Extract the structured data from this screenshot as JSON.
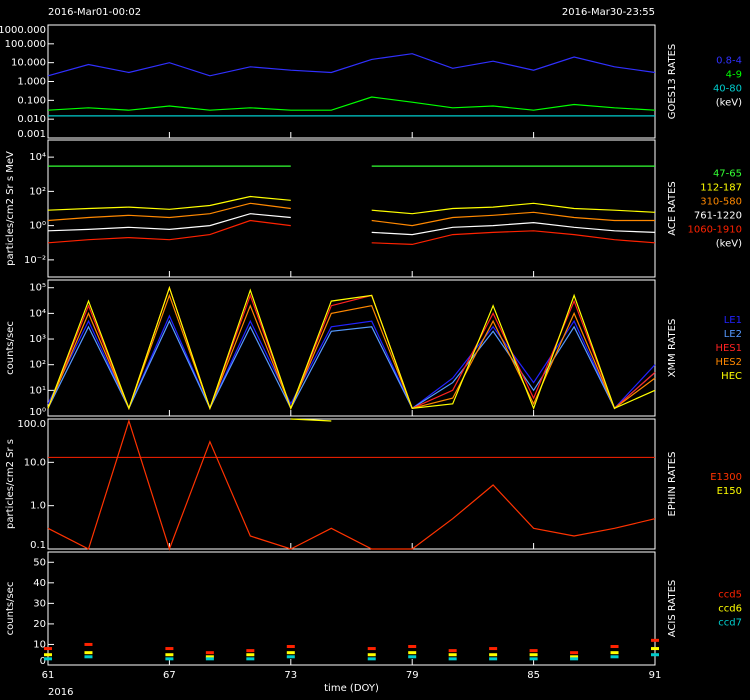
{
  "chart_data": [
    {
      "type": "line",
      "title_left": "2016-Mar01-00:02",
      "title_right": "2016-Mar30-23:55",
      "side_title": "GOES13 RATES",
      "log": true,
      "x": [
        61,
        63,
        65,
        67,
        69,
        71,
        73,
        75,
        77,
        79,
        81,
        83,
        85,
        87,
        89,
        91
      ],
      "xlim": [
        61,
        91
      ],
      "xticks": [
        61,
        67,
        73,
        79,
        85,
        91
      ],
      "ylim": [
        0.001,
        1000
      ],
      "yticks": [
        {
          "value": 1000,
          "label": "1000.000"
        },
        {
          "value": 100,
          "label": "100.000"
        },
        {
          "value": 10,
          "label": "10.000"
        },
        {
          "value": 1,
          "label": "1.000"
        },
        {
          "value": 0.1,
          "label": "0.100"
        },
        {
          "value": 0.01,
          "label": "0.010"
        },
        {
          "value": 0.001,
          "label": "0.001"
        }
      ],
      "legend_unit": "(keV)",
      "series": [
        {
          "name": "0.8-4",
          "color": "#3030ff",
          "values": [
            2,
            8,
            3,
            10,
            2,
            6,
            4,
            3,
            15,
            30,
            5,
            12,
            4,
            20,
            6,
            3
          ]
        },
        {
          "name": "4-9",
          "color": "#00ff00",
          "values": [
            0.03,
            0.04,
            0.03,
            0.05,
            0.03,
            0.04,
            0.03,
            0.03,
            0.15,
            0.08,
            0.04,
            0.05,
            0.03,
            0.06,
            0.04,
            0.03
          ]
        },
        {
          "name": "40-80",
          "color": "#00cccc",
          "values": [
            0.015,
            0.015,
            0.015,
            0.015,
            0.015,
            0.015,
            0.015,
            0.015,
            0.015,
            0.015,
            0.015,
            0.015,
            0.015,
            0.015,
            0.015,
            0.015
          ]
        }
      ]
    },
    {
      "type": "line",
      "side_title": "ACE RATES",
      "ylabel": "particles/cm2 Sr s MeV",
      "log": true,
      "x": [
        61,
        63,
        65,
        67,
        69,
        71,
        73,
        75,
        77,
        79,
        81,
        83,
        85,
        87,
        89,
        91
      ],
      "xlim": [
        61,
        91
      ],
      "xticks": [
        61,
        67,
        73,
        79,
        85,
        91
      ],
      "ylim": [
        0.001,
        100000
      ],
      "yticks": [
        {
          "value": 10000,
          "label": "10⁴"
        },
        {
          "value": 100,
          "label": "10²"
        },
        {
          "value": 1,
          "label": "10⁰"
        },
        {
          "value": 0.01,
          "label": "10⁻²"
        }
      ],
      "legend_unit": "(keV)",
      "series": [
        {
          "name": "47-65",
          "color": "#33ff33",
          "values": [
            3000,
            3000,
            3000,
            3000,
            3000,
            3000,
            3000,
            null,
            3000,
            3000,
            3000,
            3000,
            3000,
            3000,
            3000,
            3000
          ]
        },
        {
          "name": "112-187",
          "color": "#ffff00",
          "values": [
            8,
            10,
            12,
            9,
            15,
            50,
            30,
            null,
            8,
            5,
            10,
            12,
            20,
            10,
            8,
            6
          ]
        },
        {
          "name": "310-580",
          "color": "#ff8800",
          "values": [
            2,
            3,
            4,
            3,
            5,
            20,
            10,
            null,
            2,
            1,
            3,
            4,
            6,
            3,
            2,
            2
          ]
        },
        {
          "name": "761-1220",
          "color": "#ffffff",
          "values": [
            0.5,
            0.6,
            0.8,
            0.6,
            1,
            5,
            3,
            null,
            0.4,
            0.3,
            0.8,
            1,
            1.5,
            0.8,
            0.5,
            0.4
          ]
        },
        {
          "name": "1060-1910",
          "color": "#ff2200",
          "values": [
            0.1,
            0.15,
            0.2,
            0.15,
            0.3,
            2,
            1,
            null,
            0.1,
            0.08,
            0.3,
            0.4,
            0.5,
            0.3,
            0.15,
            0.1
          ]
        }
      ]
    },
    {
      "type": "line",
      "side_title": "XMM RATES",
      "ylabel": "counts/sec",
      "log": true,
      "x": [
        61,
        63,
        65,
        67,
        69,
        71,
        73,
        75,
        77,
        79,
        81,
        83,
        85,
        87,
        89,
        91
      ],
      "xlim": [
        61,
        91
      ],
      "xticks": [
        61,
        67,
        73,
        79,
        85,
        91
      ],
      "ylim": [
        1,
        200000
      ],
      "yticks": [
        {
          "value": 100000,
          "label": "10⁵"
        },
        {
          "value": 10000,
          "label": "10⁴"
        },
        {
          "value": 1000,
          "label": "10³"
        },
        {
          "value": 100,
          "label": "10²"
        },
        {
          "value": 10,
          "label": "10¹"
        },
        {
          "value": 1,
          "label": "10⁰"
        }
      ],
      "series": [
        {
          "name": "LE1",
          "color": "#2222ff",
          "values": [
            3,
            5000,
            2,
            8000,
            2,
            5000,
            3,
            3000,
            5000,
            2,
            30,
            3000,
            20,
            5000,
            2,
            100
          ]
        },
        {
          "name": "LE2",
          "color": "#5599ff",
          "values": [
            2,
            3000,
            2,
            5000,
            2,
            3000,
            2,
            2000,
            3000,
            2,
            20,
            2000,
            10,
            3000,
            2,
            50
          ]
        },
        {
          "name": "HES1",
          "color": "#ff2222",
          "values": [
            2,
            20000,
            2,
            100000,
            2,
            50000,
            2,
            20000,
            50000,
            2,
            10,
            10000,
            5,
            30000,
            2,
            50
          ]
        },
        {
          "name": "HES2",
          "color": "#ff8800",
          "values": [
            2,
            10000,
            2,
            50000,
            2,
            20000,
            2,
            10000,
            20000,
            2,
            5,
            5000,
            3,
            10000,
            2,
            30
          ]
        },
        {
          "name": "HEC",
          "color": "#ffff00",
          "values": [
            2,
            30000,
            2,
            100000,
            2,
            80000,
            2,
            30000,
            50000,
            2,
            3,
            20000,
            2,
            50000,
            2,
            10
          ]
        }
      ]
    },
    {
      "type": "line",
      "side_title": "EPHIN RATES",
      "ylabel": "particles/cm2 Sr s",
      "log": true,
      "x": [
        61,
        63,
        65,
        67,
        69,
        71,
        73,
        75,
        77,
        79,
        81,
        83,
        85,
        87,
        89,
        91
      ],
      "xlim": [
        61,
        91
      ],
      "xticks": [
        61,
        67,
        73,
        79,
        85,
        91
      ],
      "ylim": [
        0.1,
        100
      ],
      "yticks": [
        {
          "value": 100,
          "label": "100.0"
        },
        {
          "value": 10,
          "label": "10.0"
        },
        {
          "value": 1,
          "label": "1.0"
        },
        0.1
      ],
      "hline": 13,
      "hline_color": "#ff2200",
      "series": [
        {
          "name": "E1300",
          "color": "#ff3300",
          "values": [
            0.3,
            0.1,
            90,
            0.1,
            30,
            0.2,
            0.1,
            0.3,
            0.1,
            0.1,
            0.5,
            3,
            0.3,
            0.2,
            0.3,
            0.5
          ]
        },
        {
          "name": "E150",
          "color": "#ffff00",
          "values": [
            null,
            null,
            null,
            null,
            null,
            null,
            100,
            90,
            null,
            null,
            null,
            null,
            null,
            null,
            null,
            null
          ]
        }
      ]
    },
    {
      "type": "scatter",
      "side_title": "ACIS RATES",
      "ylabel": "counts/sec",
      "log": false,
      "xlabel": "time (DOY)",
      "year_label": "2016",
      "x": [
        61,
        63,
        65,
        67,
        69,
        71,
        73,
        75,
        77,
        79,
        81,
        83,
        85,
        87,
        89,
        91
      ],
      "xlim": [
        61,
        91
      ],
      "xticks": [
        61,
        67,
        73,
        79,
        85,
        91
      ],
      "ylim": [
        0,
        55
      ],
      "yticks": [
        0,
        10,
        20,
        30,
        40,
        50
      ],
      "series": [
        {
          "name": "ccd5",
          "color": "#ff2200",
          "values": [
            8,
            10,
            null,
            8,
            6,
            7,
            9,
            null,
            8,
            9,
            7,
            8,
            7,
            6,
            9,
            12
          ]
        },
        {
          "name": "ccd6",
          "color": "#ffff00",
          "values": [
            5,
            6,
            null,
            5,
            4,
            5,
            6,
            null,
            5,
            6,
            5,
            5,
            5,
            4,
            6,
            8
          ]
        },
        {
          "name": "ccd7",
          "color": "#00cccc",
          "values": [
            3,
            4,
            null,
            3,
            3,
            3,
            4,
            null,
            3,
            4,
            3,
            3,
            3,
            3,
            4,
            5
          ]
        }
      ]
    }
  ]
}
